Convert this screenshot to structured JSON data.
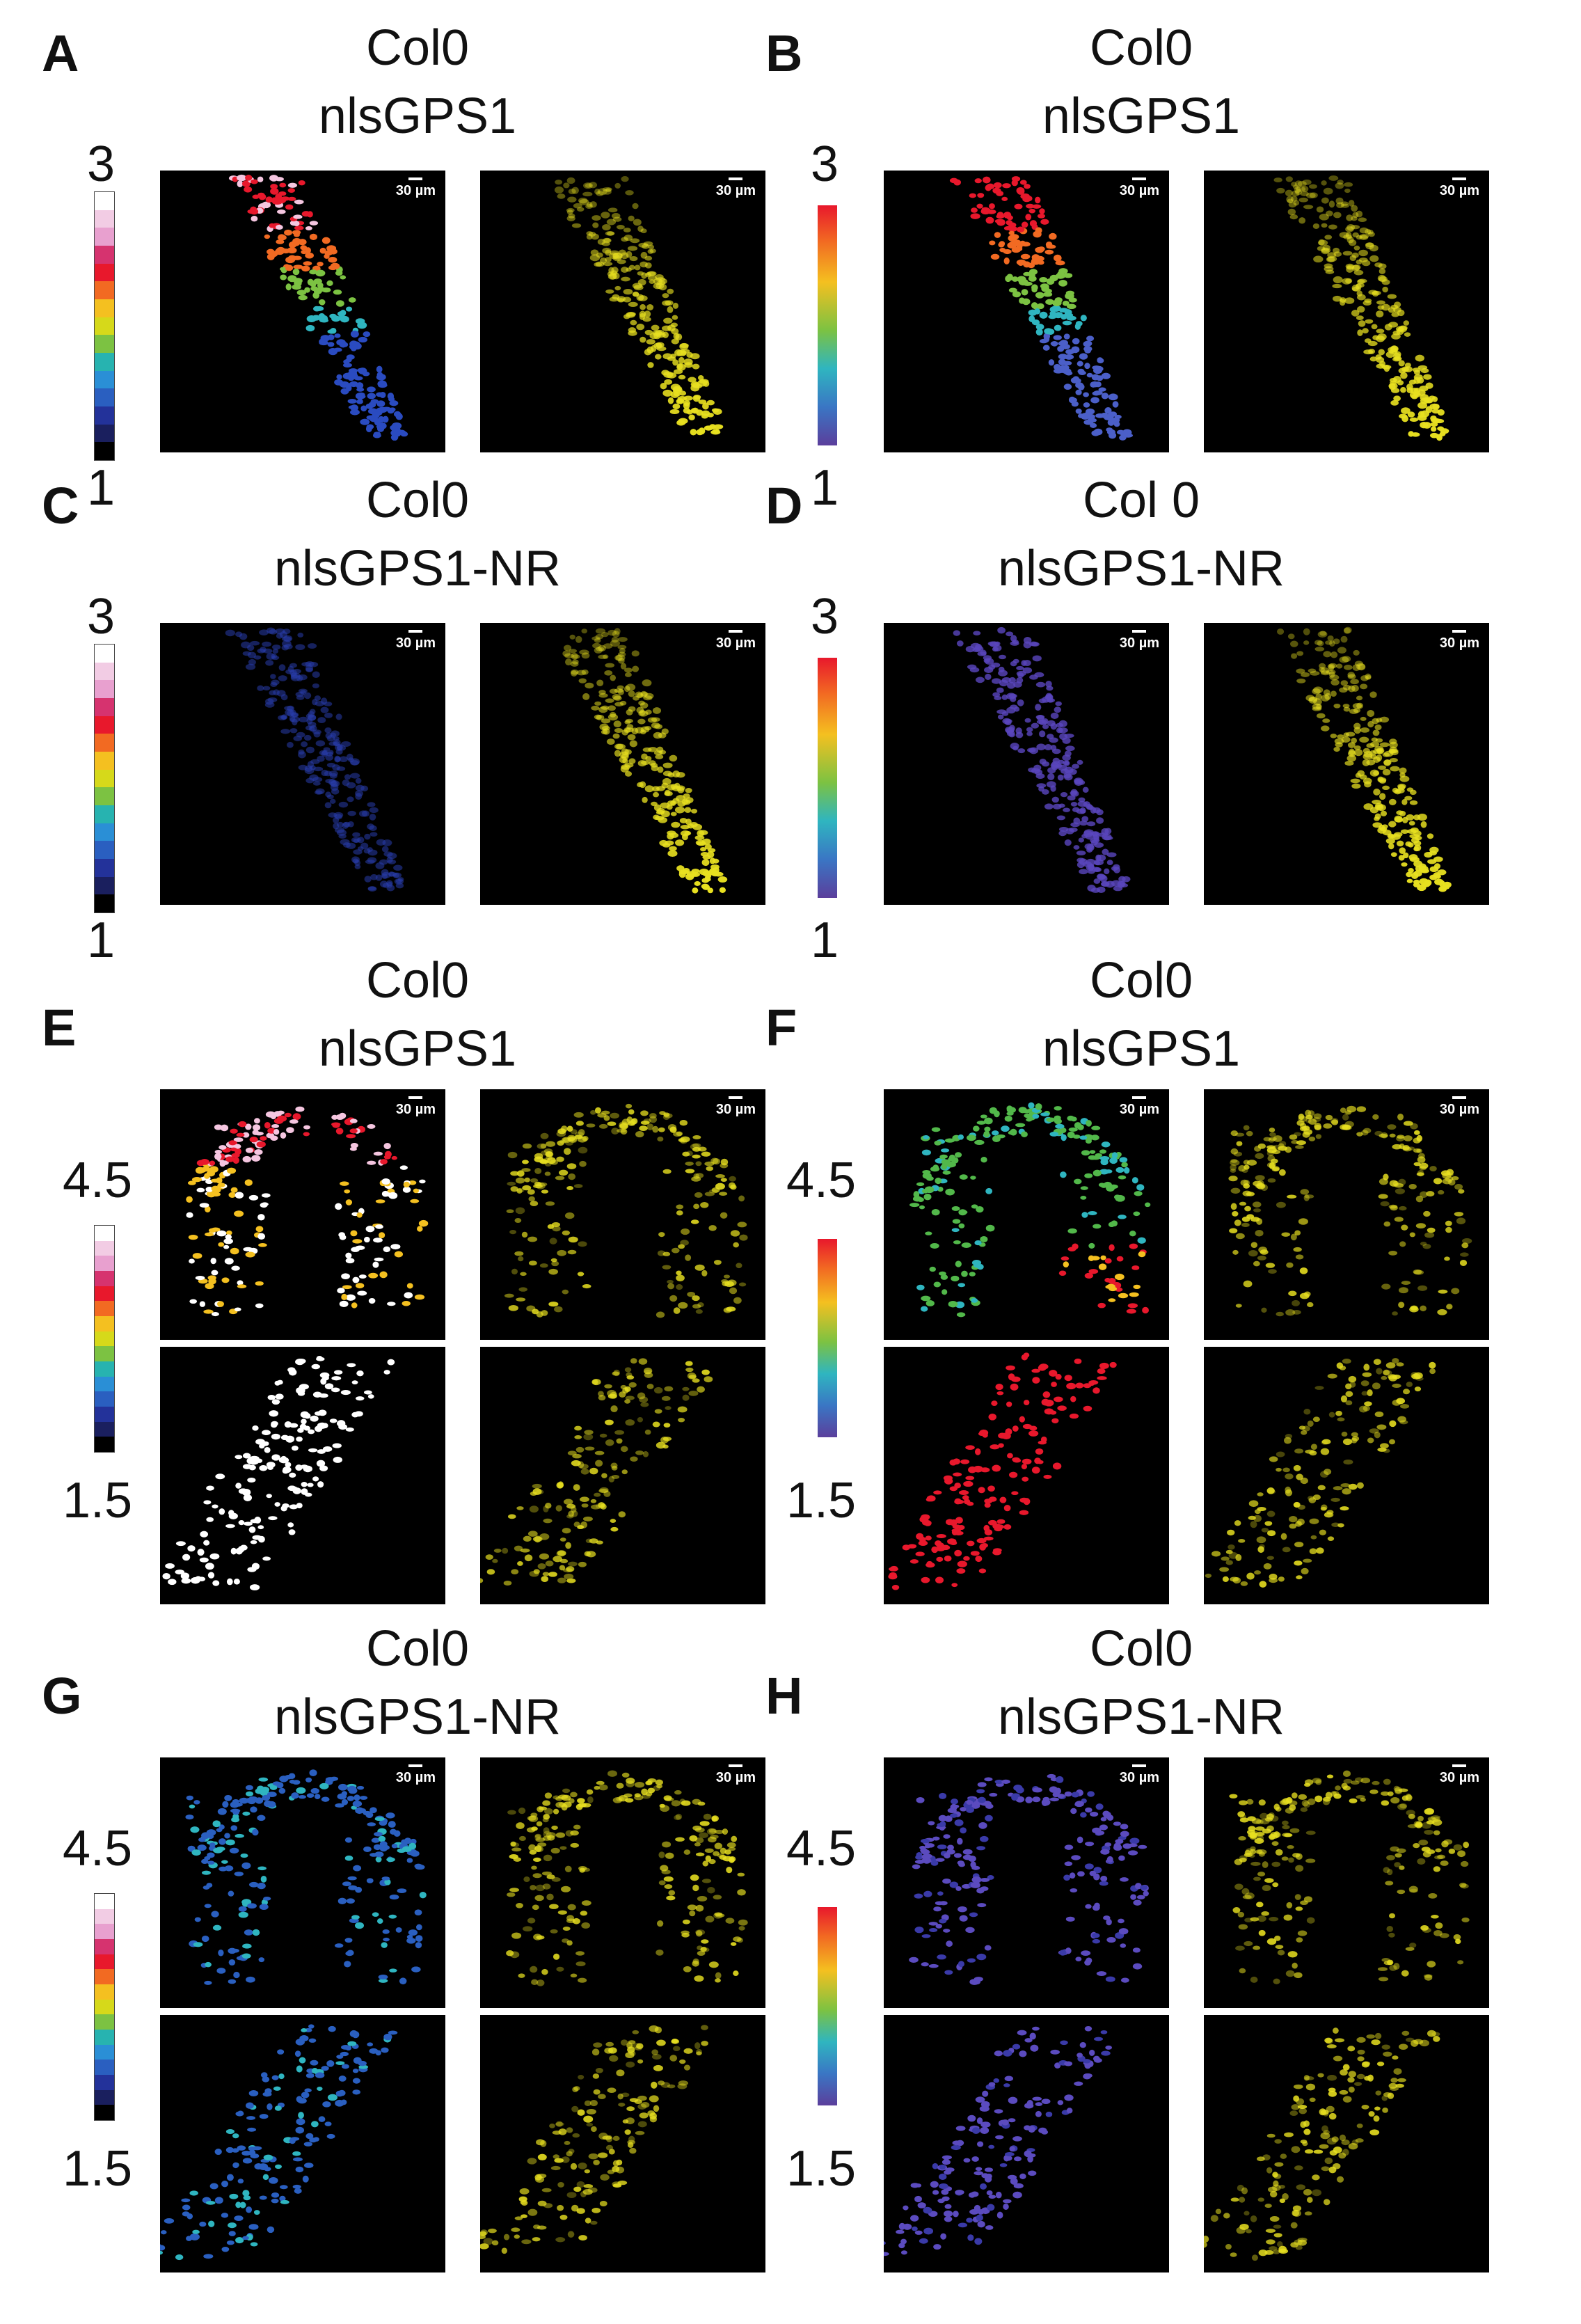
{
  "panels": [
    {
      "id": "A",
      "title1": "Col0",
      "title2": "nlsGPS1",
      "scale": "30 µm",
      "cmax": "3",
      "cmin": "1",
      "cbar": "discrete",
      "tissue": "root"
    },
    {
      "id": "B",
      "title1": "Col0",
      "title2": "nlsGPS1",
      "scale": "30 µm",
      "cmax": "3",
      "cmin": "1",
      "cbar": "continuous",
      "tissue": "root"
    },
    {
      "id": "C",
      "title1": "Col0",
      "title2": "nlsGPS1-NR",
      "scale": "30 µm",
      "cmax": "3",
      "cmin": "1",
      "cbar": "discrete",
      "tissue": "root"
    },
    {
      "id": "D",
      "title1": "Col 0",
      "title2": "nlsGPS1-NR",
      "scale": "30 µm",
      "cmax": "3",
      "cmin": "1",
      "cbar": "continuous",
      "tissue": "root"
    },
    {
      "id": "E",
      "title1": "Col0",
      "title2": "nlsGPS1",
      "scale": "30 µm",
      "cmax": "4.5",
      "cmin": "1.5",
      "cbar": "discrete",
      "tissue": "hypocotyl"
    },
    {
      "id": "F",
      "title1": "Col0",
      "title2": "nlsGPS1",
      "scale": "30 µm",
      "cmax": "4.5",
      "cmin": "1.5",
      "cbar": "continuous",
      "tissue": "hypocotyl"
    },
    {
      "id": "G",
      "title1": "Col0",
      "title2": "nlsGPS1-NR",
      "scale": "30 µm",
      "cmax": "4.5",
      "cmin": "1.5",
      "cbar": "discrete",
      "tissue": "hypocotyl"
    },
    {
      "id": "H",
      "title1": "Col0",
      "title2": "nlsGPS1-NR",
      "scale": "30 µm",
      "cmax": "4.5",
      "cmin": "1.5",
      "cbar": "continuous",
      "tissue": "hypocotyl"
    }
  ],
  "colors": {
    "discrete_colorbar": [
      "#ffffff",
      "#f2cce4",
      "#e8a0cf",
      "#d6336f",
      "#e8182c",
      "#f26a22",
      "#f4c020",
      "#d6d91a",
      "#7cc242",
      "#27b3b0",
      "#2a8fd6",
      "#2a5fc0",
      "#23329a",
      "#1a1f5e",
      "#000000"
    ],
    "yellow_channel": "#e8e020"
  }
}
